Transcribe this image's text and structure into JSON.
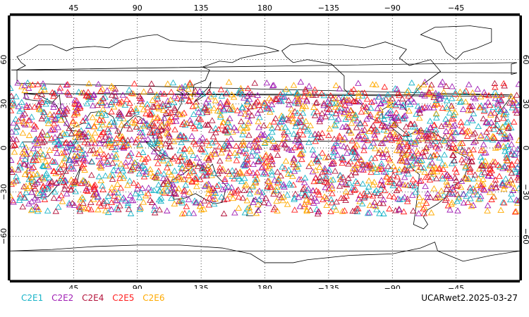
{
  "map": {
    "top_lon_ticks": [
      "45",
      "90",
      "135",
      "180",
      "−135",
      "−90",
      "−45"
    ],
    "bottom_lon_ticks": [
      "45",
      "90",
      "135",
      "180",
      "−135",
      "−90",
      "−45"
    ],
    "lat_ticks": [
      "60",
      "30",
      "0",
      "−30",
      "−60"
    ],
    "lon_tick_values": [
      45,
      90,
      135,
      180,
      225,
      270,
      315
    ],
    "lat_tick_values": [
      60,
      30,
      0,
      -30,
      -60
    ],
    "lon_range": [
      0,
      360
    ],
    "lat_range": [
      -90,
      90
    ],
    "grid": "dotted"
  },
  "legend": [
    {
      "label": "C2E1",
      "color": "#19b4c8"
    },
    {
      "label": "C2E2",
      "color": "#a01eb4"
    },
    {
      "label": "C2E4",
      "color": "#b4143c"
    },
    {
      "label": "C2E5",
      "color": "#ff1e1e"
    },
    {
      "label": "C2E6",
      "color": "#ffaa00"
    }
  ],
  "stamp": "UCARwet2.2025-03-27"
}
